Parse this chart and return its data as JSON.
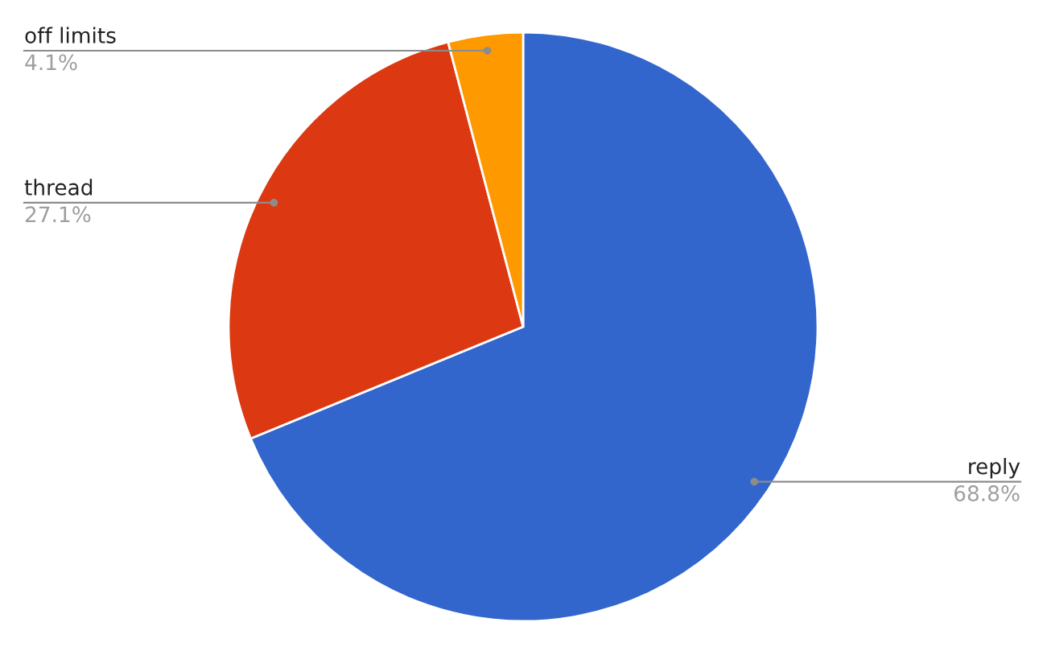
{
  "chart_data": {
    "type": "pie",
    "categories": [
      "reply",
      "thread",
      "off limits"
    ],
    "values": [
      68.8,
      27.1,
      4.1
    ],
    "colors": [
      "#3366cc",
      "#dc3912",
      "#ff9900"
    ],
    "value_labels": [
      "68.8%",
      "27.1%",
      "4.1%"
    ],
    "legend": false
  }
}
